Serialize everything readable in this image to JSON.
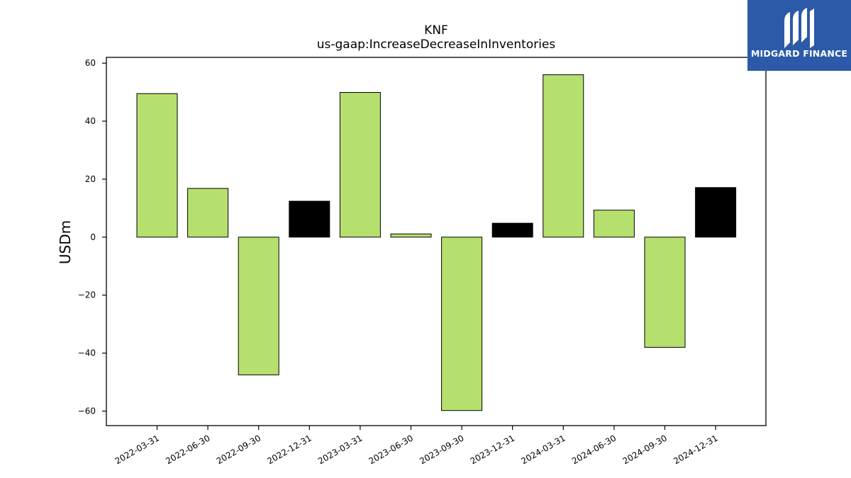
{
  "brand": {
    "name": "MIDGARD FINANCE",
    "color": "#2c5aa8"
  },
  "chart_data": {
    "type": "bar",
    "title": "KNF",
    "subtitle": "us-gaap:IncreaseDecreaseInInventories",
    "xlabel": "",
    "ylabel": "USDm",
    "ylim": [
      -65,
      62
    ],
    "yticks": [
      60,
      40,
      20,
      0,
      -20,
      -40,
      -60
    ],
    "ytick_labels": [
      "60",
      "40",
      "20",
      "0",
      "−20",
      "−40",
      "−60"
    ],
    "grid": false,
    "categories": [
      "2022-03-31",
      "2022-06-30",
      "2022-09-30",
      "2022-12-31",
      "2023-03-31",
      "2023-06-30",
      "2023-09-30",
      "2023-12-31",
      "2024-03-31",
      "2024-06-30",
      "2024-09-30",
      "2024-12-31"
    ],
    "values": [
      49.5,
      16.8,
      -47.5,
      12.4,
      49.9,
      1.1,
      -59.8,
      4.8,
      56.0,
      9.3,
      -38.0,
      17.1
    ],
    "colors": [
      "#b5e06d",
      "#b5e06d",
      "#b5e06d",
      "#000000",
      "#b5e06d",
      "#b5e06d",
      "#b5e06d",
      "#000000",
      "#b5e06d",
      "#b5e06d",
      "#b5e06d",
      "#000000"
    ]
  }
}
